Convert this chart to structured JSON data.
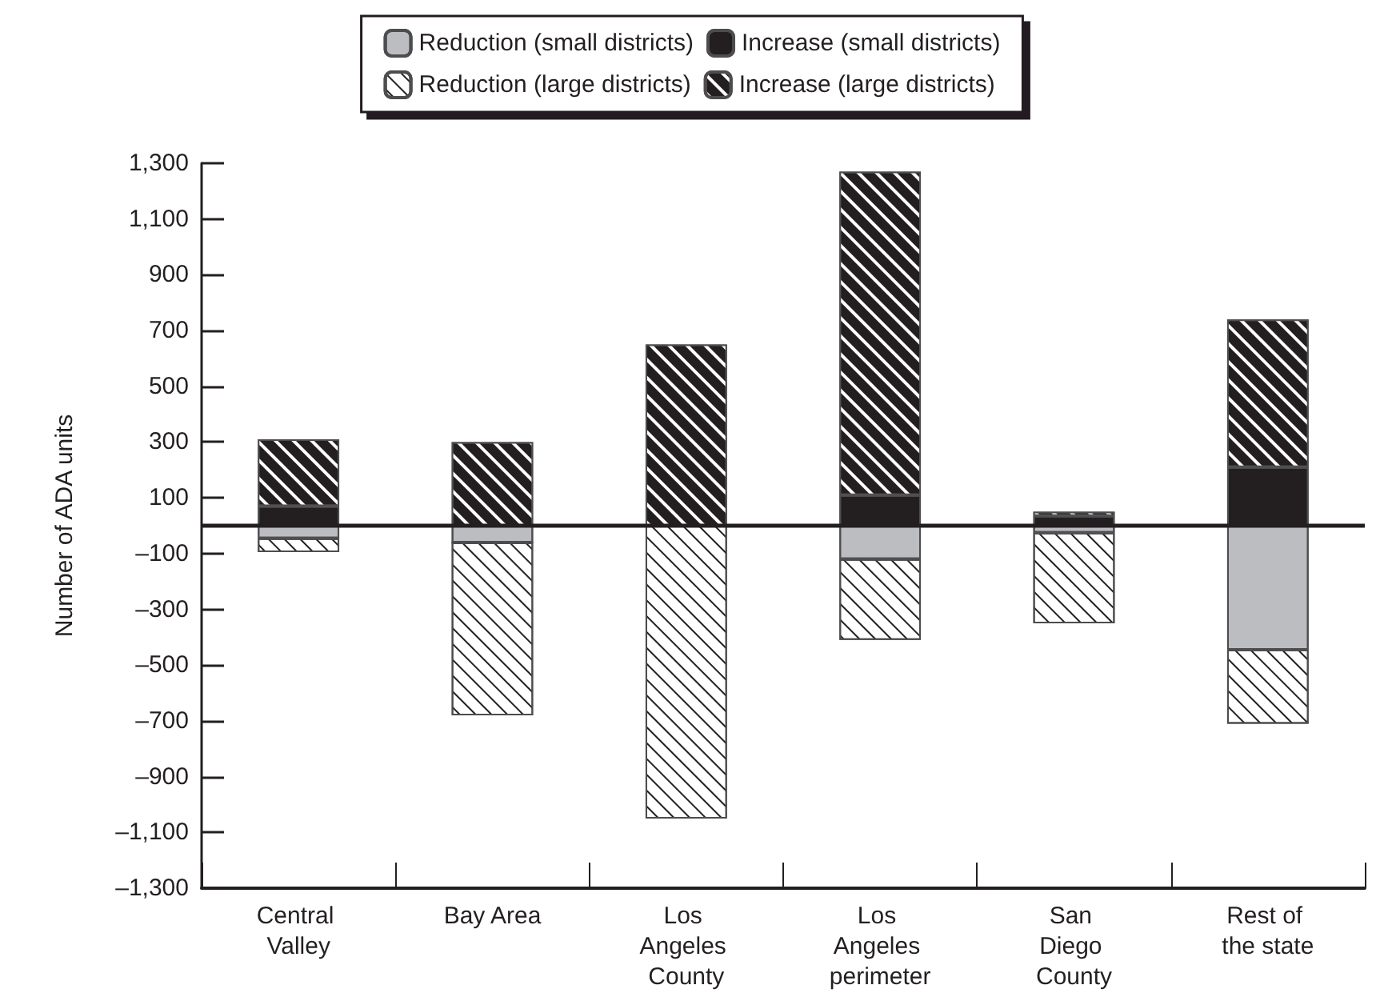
{
  "chart_data": {
    "type": "bar",
    "stacked": true,
    "ylabel": "Number of ADA units",
    "categories": [
      "Central Valley",
      "Bay Area",
      "Los Angeles County",
      "Los Angeles perimeter",
      "San Diego County",
      "Rest of the state"
    ],
    "series": [
      {
        "name": "Reduction (small districts)",
        "color": "#bcbdc0",
        "values": [
          -45,
          -60,
          0,
          -120,
          -25,
          -445
        ]
      },
      {
        "name": "Increase (small districts)",
        "color": "#231f20",
        "values": [
          70,
          0,
          0,
          110,
          35,
          210
        ]
      },
      {
        "name": "Reduction (large districts)",
        "color": "#ffffff",
        "values": [
          -50,
          -620,
          -1050,
          -290,
          -325,
          -265
        ]
      },
      {
        "name": "Increase (large districts)",
        "color": "#231f20",
        "values": [
          240,
          300,
          650,
          1160,
          15,
          530
        ]
      }
    ],
    "ylim": [
      -1300,
      1300
    ],
    "yticks": [
      {
        "value": -1300,
        "label": "–1,300"
      },
      {
        "value": -1100,
        "label": "–1,100"
      },
      {
        "value": -900,
        "label": "–900"
      },
      {
        "value": -700,
        "label": "–700"
      },
      {
        "value": -500,
        "label": "–500"
      },
      {
        "value": -300,
        "label": "–300"
      },
      {
        "value": -100,
        "label": "–100"
      },
      100,
      300,
      500,
      700,
      900,
      {
        "value": 1100,
        "label": "1,100"
      },
      {
        "value": 1300,
        "label": "1,300"
      }
    ],
    "ref_lines": [
      {
        "axis": "y",
        "value": 0,
        "label": null,
        "color": "#231f20"
      }
    ],
    "grid": false,
    "legend": "top"
  }
}
